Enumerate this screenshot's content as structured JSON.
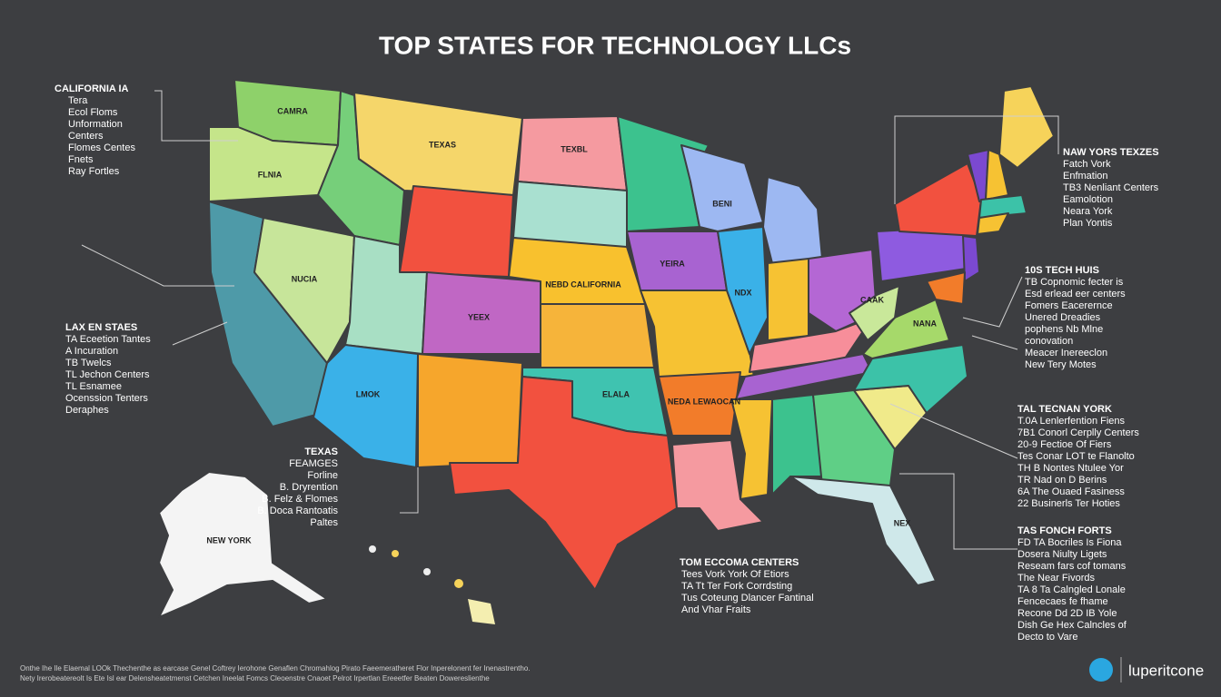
{
  "title": "TOP STATES FOR TECHNOLOGY LLCs",
  "map_labels": [
    "CAMRA",
    "FLNIA",
    "NUCIA",
    "TEXAS",
    "TEXBL",
    "NEBD CALIFORNIA",
    "YEEX",
    "LMOK",
    "ELALA",
    "NEDA LEWAOCAN",
    "YEIRA",
    "BENI",
    "NDX",
    "CAAK",
    "NANA",
    "NEX",
    "NEW YORK"
  ],
  "callouts": [
    {
      "heading": "CALIFORNIA IA",
      "lines": [
        "Tera",
        "Ecol Floms",
        "Unformation",
        "Centers",
        "Flomes Centes",
        "Fnets",
        "Ray Fortles"
      ]
    },
    {
      "heading": "LAX EN STAES",
      "lines": [
        "TA Eceetion Tantes",
        "A Incuration",
        "TB Twelcs",
        "TL Jechon Centers",
        "TL Esnamee",
        "Ocenssion Tenters",
        "Deraphes"
      ]
    },
    {
      "heading": "TEXAS",
      "lines": [
        "FEAMGES",
        "Forline",
        "B. Dryrention",
        "B. Felz & Flomes",
        "B. Doca Rantoatis",
        "Paltes"
      ]
    },
    {
      "heading": "TOM ECCOMA CENTERS",
      "lines": [
        "Tees Vork York Of Etiors",
        "TA Tt Ter Fork Corrdsting",
        "Tus Coteung Dlancer Fantinal",
        "And Vhar Fraits"
      ]
    },
    {
      "heading": "NAW YORS TEXZES",
      "lines": [
        "Fatch Vork",
        "Enfmation",
        "TB3 Nenliant Centers",
        "Eamolotion",
        "Neara York",
        "Plan Yontis"
      ]
    },
    {
      "heading": "10S TECH HUIS",
      "lines": [
        "TB Copnomic fecter is",
        "Esd erlead eer centers",
        "Fomers Eacerernce",
        "Unered Dreadies",
        "pophens Nb Mlne",
        "conovation",
        "Meacer Inereeclon",
        "New Tery Motes"
      ]
    },
    {
      "heading": "TAL TECNAN YORK",
      "lines": [
        "T.0A Lenlerfention Fiens",
        "7B1 Conorl Cerplly Centers",
        "20-9 Fectioe Of Fiers",
        "Tes Conar LOT te Flanolto",
        "TH B Nontes Ntulee Yor",
        "TR Nad on D Berins",
        "6A The Ouaed Fasiness",
        "22 Businerls Ter Hoties"
      ]
    },
    {
      "heading": "TAS FONCH FORTS",
      "lines": [
        "FD TA Bocriles Is Fiona",
        "Dosera Niulty Ligets",
        "Reseam fars cof tomans",
        "The Near Fivords",
        "TA 8 Ta Calngled Lonale",
        "Fencecaes fe fhame",
        "Recone Dd 2D IB Yole",
        "Dish Ge Hex Calncles of",
        "Decto to Vare"
      ]
    }
  ],
  "footer": [
    "Onthe Ihe Ile Elaemal LOOk Thechenthe as earcase Genel Coftrey Ierohone Genaflen Chromahlog Pirato Faeemeratheret Flor Inperelonent fer Inenastrentho.",
    "Nety Irerobeatereolt Is Ete Isl ear Delensheatetmenst Cetchen Ineelat Fomcs Cleoenstre Cnaoet Pelrot Irpertlan Ereeetfer Beaten Dowereslienthe"
  ],
  "brand": "luperitcone"
}
